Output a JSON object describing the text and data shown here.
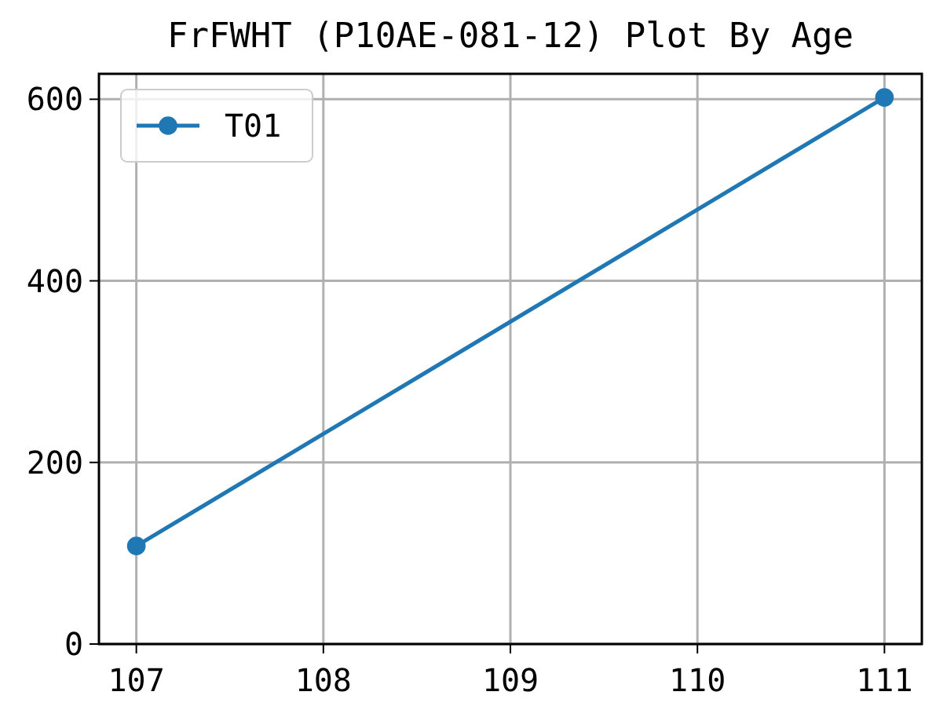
{
  "chart_data": {
    "type": "line",
    "title": "FrFWHT (P10AE-081-12) Plot By Age",
    "x": [
      107,
      111
    ],
    "series": [
      {
        "name": "T01",
        "color": "#1f77b4",
        "values": [
          108,
          602
        ]
      }
    ],
    "xlim": [
      106.8,
      111.2
    ],
    "xticks": [
      107,
      108,
      109,
      110,
      111
    ],
    "ylim": [
      0,
      628
    ],
    "yticks": [
      0,
      200,
      400,
      600
    ],
    "grid": true,
    "legend": "top left",
    "marker": "circle",
    "line_style": "solid"
  }
}
